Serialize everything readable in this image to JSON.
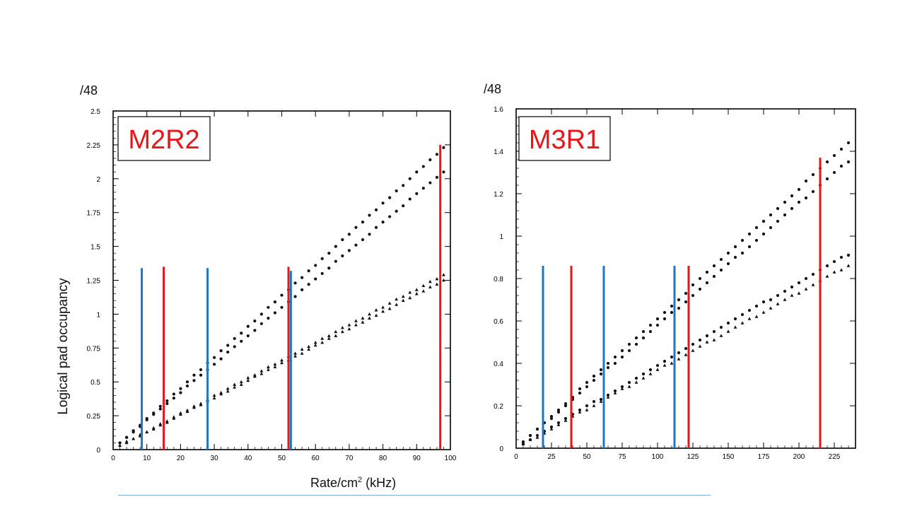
{
  "y_axis_label": "Logical pad occupancy",
  "x_axis_label": "Rate/cm",
  "x_axis_label_sup": "2",
  "x_axis_label_suffix": " (kHz)",
  "colors": {
    "red_line": "#e8151b",
    "blue_line": "#1f77c4",
    "markers": "#111111"
  },
  "chart_data": [
    {
      "type": "scatter",
      "title": "M2R2",
      "ylabel_unit": "/48",
      "xlim": [
        0,
        100
      ],
      "ylim": [
        0,
        2.5
      ],
      "xticks": [
        0,
        10,
        20,
        30,
        40,
        50,
        60,
        70,
        80,
        90,
        100
      ],
      "yticks": [
        "0",
        "0.25",
        "0.5",
        "0.75",
        "1",
        "1.25",
        "1.5",
        "1.75",
        "2",
        "2.25",
        "2.5"
      ],
      "series": [
        {
          "marker": "dot",
          "x": [
            2,
            4,
            6,
            8,
            10,
            12,
            14,
            16,
            18,
            20,
            22,
            24,
            26,
            28,
            30,
            32,
            34,
            36,
            38,
            40,
            42,
            44,
            46,
            48,
            50,
            52,
            54,
            56,
            58,
            60,
            62,
            64,
            66,
            68,
            70,
            72,
            74,
            76,
            78,
            80,
            82,
            84,
            86,
            88,
            90,
            92,
            94,
            96,
            98
          ],
          "y": [
            0.05,
            0.09,
            0.13,
            0.17,
            0.22,
            0.26,
            0.3,
            0.34,
            0.38,
            0.42,
            0.47,
            0.51,
            0.55,
            0.59,
            0.63,
            0.67,
            0.72,
            0.76,
            0.8,
            0.84,
            0.88,
            0.93,
            0.97,
            1.01,
            1.05,
            1.09,
            1.13,
            1.18,
            1.22,
            1.26,
            1.3,
            1.34,
            1.39,
            1.43,
            1.47,
            1.51,
            1.55,
            1.59,
            1.64,
            1.68,
            1.72,
            1.76,
            1.8,
            1.85,
            1.89,
            1.93,
            1.97,
            2.01,
            2.05
          ]
        },
        {
          "marker": "triangle",
          "x": [
            2,
            4,
            6,
            8,
            10,
            12,
            14,
            16,
            18,
            20,
            22,
            24,
            26,
            28,
            30,
            32,
            34,
            36,
            38,
            40,
            42,
            44,
            46,
            48,
            50,
            52,
            54,
            56,
            58,
            60,
            62,
            64,
            66,
            68,
            70,
            72,
            74,
            76,
            78,
            80,
            82,
            84,
            86,
            88,
            90,
            92,
            94,
            96,
            98
          ],
          "y": [
            0.03,
            0.06,
            0.08,
            0.11,
            0.13,
            0.16,
            0.19,
            0.21,
            0.24,
            0.27,
            0.29,
            0.32,
            0.34,
            0.37,
            0.4,
            0.42,
            0.45,
            0.48,
            0.5,
            0.53,
            0.55,
            0.58,
            0.61,
            0.63,
            0.66,
            0.69,
            0.71,
            0.74,
            0.76,
            0.79,
            0.82,
            0.84,
            0.87,
            0.9,
            0.92,
            0.95,
            0.97,
            1.0,
            1.03,
            1.05,
            1.08,
            1.11,
            1.13,
            1.16,
            1.18,
            1.21,
            1.24,
            1.26,
            1.29
          ]
        },
        {
          "marker": "dot",
          "x": [
            2,
            4,
            6,
            8,
            10,
            12,
            14,
            16,
            18,
            20,
            22,
            24,
            26,
            28,
            30,
            32,
            34,
            36,
            38,
            40,
            42,
            44,
            46,
            48,
            50,
            52,
            54,
            56,
            58,
            60,
            62,
            64,
            66,
            68,
            70,
            72,
            74,
            76,
            78,
            80,
            82,
            84,
            86,
            88,
            90,
            92,
            94,
            96,
            98
          ],
          "y": [
            0.05,
            0.09,
            0.14,
            0.18,
            0.23,
            0.27,
            0.32,
            0.36,
            0.41,
            0.45,
            0.5,
            0.55,
            0.59,
            0.64,
            0.68,
            0.73,
            0.77,
            0.82,
            0.86,
            0.91,
            0.95,
            1.0,
            1.05,
            1.09,
            1.14,
            1.18,
            1.23,
            1.27,
            1.32,
            1.36,
            1.41,
            1.45,
            1.5,
            1.55,
            1.59,
            1.64,
            1.68,
            1.73,
            1.77,
            1.82,
            1.86,
            1.91,
            1.95,
            2.0,
            2.05,
            2.09,
            2.14,
            2.18,
            2.23
          ]
        },
        {
          "marker": "triangle",
          "x": [
            2,
            4,
            6,
            8,
            10,
            12,
            14,
            16,
            18,
            20,
            22,
            24,
            26,
            28,
            30,
            32,
            34,
            36,
            38,
            40,
            42,
            44,
            46,
            48,
            50,
            52,
            54,
            56,
            58,
            60,
            62,
            64,
            66,
            68,
            70,
            72,
            74,
            76,
            78,
            80,
            82,
            84,
            86,
            88,
            90,
            92,
            94,
            96,
            98
          ],
          "y": [
            0.03,
            0.05,
            0.08,
            0.1,
            0.13,
            0.15,
            0.18,
            0.2,
            0.23,
            0.26,
            0.28,
            0.31,
            0.33,
            0.36,
            0.38,
            0.41,
            0.43,
            0.46,
            0.48,
            0.51,
            0.54,
            0.56,
            0.59,
            0.61,
            0.64,
            0.66,
            0.69,
            0.71,
            0.74,
            0.77,
            0.79,
            0.82,
            0.84,
            0.87,
            0.89,
            0.92,
            0.94,
            0.97,
            0.99,
            1.02,
            1.04,
            1.07,
            1.1,
            1.12,
            1.15,
            1.17,
            1.2,
            1.22,
            1.25
          ]
        }
      ],
      "red_lines": [
        {
          "x": 15,
          "y": 1.35
        },
        {
          "x": 52,
          "y": 1.35
        },
        {
          "x": 97,
          "y": 2.25
        }
      ],
      "blue_lines": [
        {
          "x": 8.5,
          "y": 1.34
        },
        {
          "x": 28,
          "y": 1.34
        },
        {
          "x": 52.7,
          "y": 1.32
        }
      ]
    },
    {
      "type": "scatter",
      "title": "M3R1",
      "ylabel_unit": "/48",
      "xlim": [
        0,
        240
      ],
      "ylim": [
        0,
        1.6
      ],
      "xticks": [
        0,
        25,
        50,
        75,
        100,
        125,
        150,
        175,
        200,
        225
      ],
      "yticks": [
        "0",
        "0.2",
        "0.4",
        "0.6",
        "0.8",
        "1",
        "1.2",
        "1.4",
        "1.6"
      ],
      "series": [
        {
          "marker": "dot",
          "x": [
            5,
            10,
            15,
            20,
            25,
            30,
            35,
            40,
            45,
            50,
            55,
            60,
            65,
            70,
            75,
            80,
            85,
            90,
            95,
            100,
            105,
            110,
            115,
            120,
            125,
            130,
            135,
            140,
            145,
            150,
            155,
            160,
            165,
            170,
            175,
            180,
            185,
            190,
            195,
            200,
            205,
            210,
            215,
            220,
            225,
            230,
            235
          ],
          "y": [
            0.03,
            0.06,
            0.09,
            0.12,
            0.14,
            0.17,
            0.2,
            0.23,
            0.26,
            0.29,
            0.32,
            0.35,
            0.38,
            0.4,
            0.43,
            0.46,
            0.49,
            0.52,
            0.55,
            0.58,
            0.61,
            0.64,
            0.66,
            0.69,
            0.72,
            0.75,
            0.78,
            0.81,
            0.84,
            0.87,
            0.9,
            0.92,
            0.95,
            0.98,
            1.01,
            1.04,
            1.07,
            1.1,
            1.13,
            1.16,
            1.18,
            1.21,
            1.24,
            1.27,
            1.3,
            1.33,
            1.35
          ]
        },
        {
          "marker": "dot",
          "x": [
            5,
            10,
            15,
            20,
            25,
            30,
            35,
            40,
            45,
            50,
            55,
            60,
            65,
            70,
            75,
            80,
            85,
            90,
            95,
            100,
            105,
            110,
            115,
            120,
            125,
            130,
            135,
            140,
            145,
            150,
            155,
            160,
            165,
            170,
            175,
            180,
            185,
            190,
            195,
            200,
            205,
            210,
            215,
            220,
            225,
            230,
            235
          ],
          "y": [
            0.03,
            0.06,
            0.09,
            0.12,
            0.15,
            0.18,
            0.21,
            0.24,
            0.28,
            0.31,
            0.34,
            0.37,
            0.4,
            0.43,
            0.46,
            0.49,
            0.52,
            0.55,
            0.58,
            0.61,
            0.64,
            0.67,
            0.7,
            0.73,
            0.77,
            0.8,
            0.83,
            0.86,
            0.89,
            0.92,
            0.95,
            0.98,
            1.01,
            1.04,
            1.07,
            1.1,
            1.13,
            1.16,
            1.19,
            1.22,
            1.26,
            1.29,
            1.32,
            1.35,
            1.38,
            1.41,
            1.44
          ]
        },
        {
          "marker": "dot",
          "x": [
            5,
            10,
            15,
            20,
            25,
            30,
            35,
            40,
            45,
            50,
            55,
            60,
            65,
            70,
            75,
            80,
            85,
            90,
            95,
            100,
            105,
            110,
            115,
            120,
            125,
            130,
            135,
            140,
            145,
            150,
            155,
            160,
            165,
            170,
            175,
            180,
            185,
            190,
            195,
            200,
            205,
            210,
            215,
            220,
            225,
            230,
            235
          ],
          "y": [
            0.02,
            0.04,
            0.06,
            0.08,
            0.1,
            0.12,
            0.14,
            0.16,
            0.18,
            0.2,
            0.22,
            0.23,
            0.25,
            0.27,
            0.29,
            0.31,
            0.33,
            0.35,
            0.37,
            0.39,
            0.41,
            0.43,
            0.45,
            0.47,
            0.49,
            0.51,
            0.53,
            0.55,
            0.57,
            0.59,
            0.61,
            0.63,
            0.65,
            0.67,
            0.69,
            0.7,
            0.72,
            0.74,
            0.76,
            0.78,
            0.8,
            0.82,
            0.84,
            0.86,
            0.88,
            0.9,
            0.91
          ]
        },
        {
          "marker": "triangle",
          "x": [
            5,
            10,
            15,
            20,
            25,
            30,
            35,
            40,
            45,
            50,
            55,
            60,
            65,
            70,
            75,
            80,
            85,
            90,
            95,
            100,
            105,
            110,
            115,
            120,
            125,
            130,
            135,
            140,
            145,
            150,
            155,
            160,
            165,
            170,
            175,
            180,
            185,
            190,
            195,
            200,
            205,
            210,
            215,
            220,
            225,
            230,
            235
          ],
          "y": [
            0.02,
            0.04,
            0.05,
            0.07,
            0.09,
            0.11,
            0.13,
            0.15,
            0.17,
            0.18,
            0.2,
            0.22,
            0.24,
            0.26,
            0.28,
            0.29,
            0.31,
            0.33,
            0.35,
            0.37,
            0.39,
            0.4,
            0.42,
            0.44,
            0.46,
            0.48,
            0.5,
            0.51,
            0.53,
            0.55,
            0.57,
            0.59,
            0.61,
            0.62,
            0.64,
            0.66,
            0.68,
            0.7,
            0.72,
            0.73,
            0.75,
            0.77,
            0.79,
            0.81,
            0.83,
            0.84,
            0.86
          ]
        }
      ],
      "red_lines": [
        {
          "x": 39,
          "y": 0.86
        },
        {
          "x": 122,
          "y": 0.86
        },
        {
          "x": 215,
          "y": 1.37
        }
      ],
      "blue_lines": [
        {
          "x": 19,
          "y": 0.86
        },
        {
          "x": 62,
          "y": 0.86
        },
        {
          "x": 112,
          "y": 0.86
        }
      ]
    }
  ]
}
